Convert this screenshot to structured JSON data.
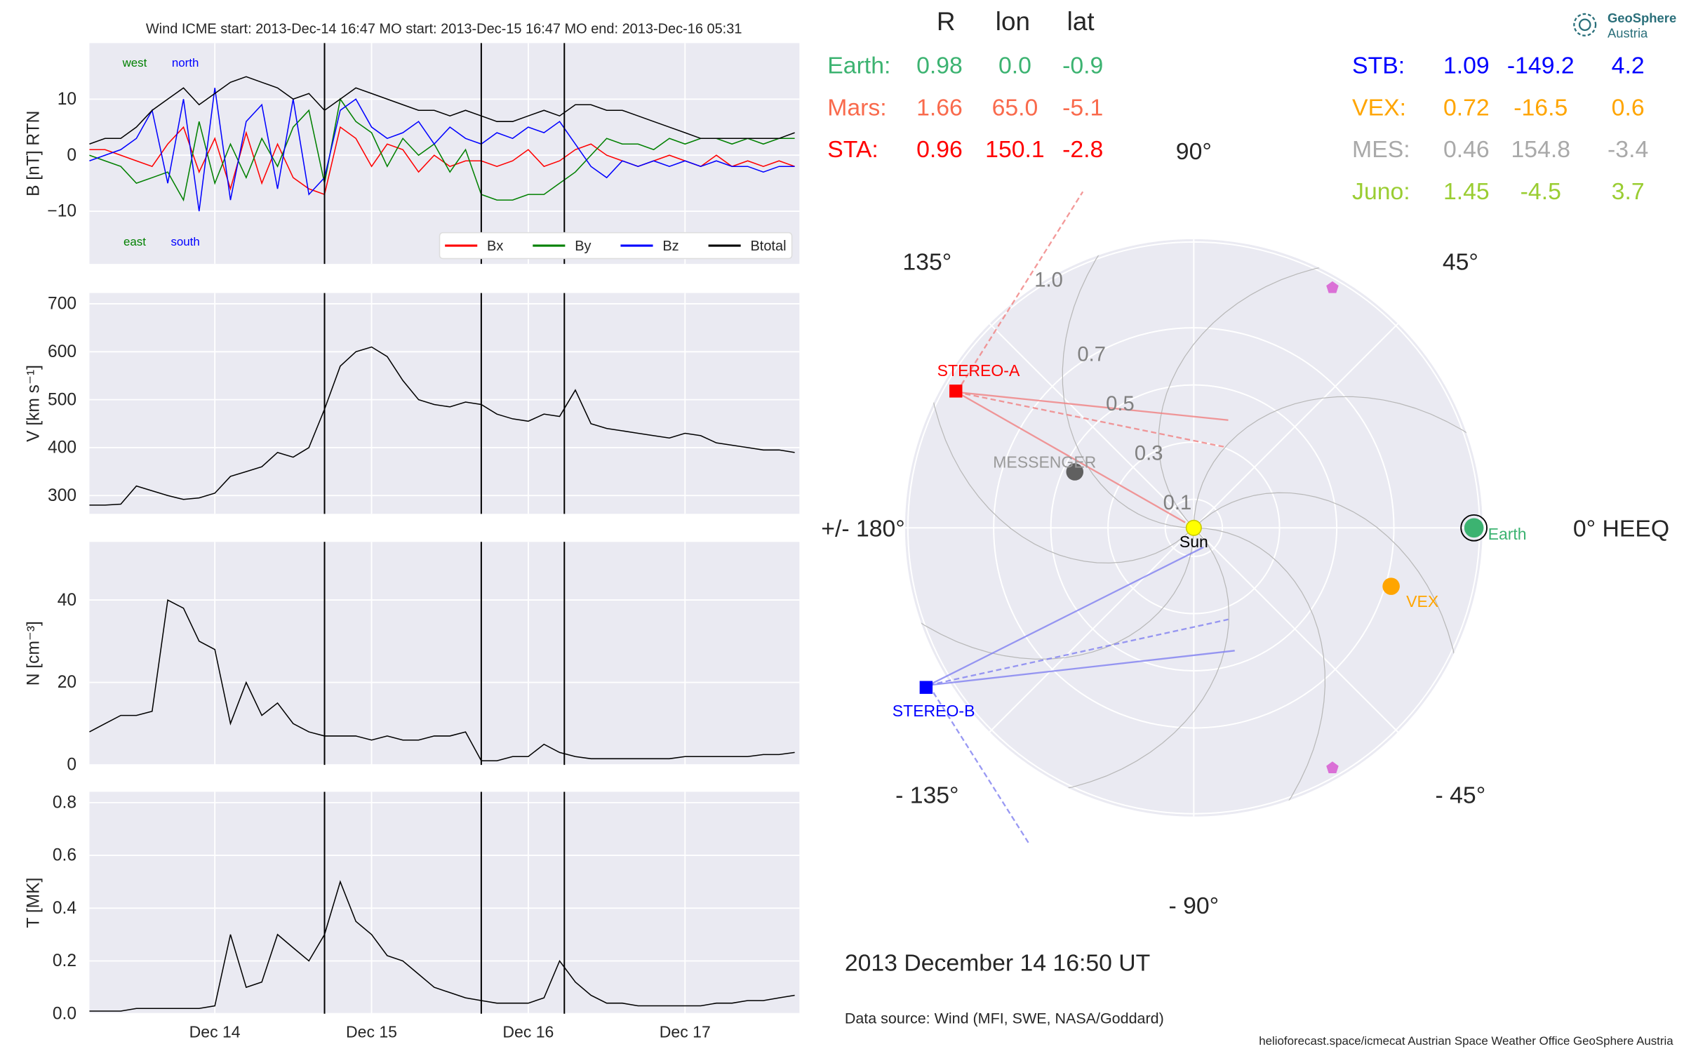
{
  "header": {
    "logo_title": "GeoSphere",
    "logo_subtitle": "Austria",
    "date": "2013 December 14  16:50 UT",
    "source": "Data source: Wind (MFI, SWE, NASA/Goddard)",
    "footer": "helioforecast.space/icmecat   Austrian Space Weather Office   GeoSphere Austria"
  },
  "table": {
    "columns": [
      "R",
      "lon",
      "lat"
    ],
    "rows": [
      {
        "name": "Earth:",
        "color": "#3cb371",
        "cells": [
          "0.98",
          "0.0",
          "-0.9"
        ]
      },
      {
        "name": "Mars:",
        "color": "#f96a4c",
        "cells": [
          "1.66",
          "65.0",
          "-5.1"
        ]
      },
      {
        "name": "STA:",
        "color": "#ff0000",
        "cells": [
          "0.96",
          "150.1",
          "-2.8"
        ]
      },
      {
        "name": "STB:",
        "color": "#0000ff",
        "cells": [
          "1.09",
          "-149.2",
          "4.2"
        ]
      },
      {
        "name": "VEX:",
        "color": "#ffa500",
        "cells": [
          "0.72",
          "-16.5",
          "0.6"
        ]
      },
      {
        "name": "MES:",
        "color": "#a9a9a9",
        "cells": [
          "0.46",
          "154.8",
          "-3.4"
        ]
      },
      {
        "name": "Juno:",
        "color": "#9acd32",
        "cells": [
          "1.45",
          "-4.5",
          "3.7"
        ]
      }
    ]
  },
  "chart_data": [
    {
      "type": "line",
      "title": "Wind    ICME start: 2013-Dec-14 16:47   MO start: 2013-Dec-15 16:47   MO end: 2013-Dec-16 05:31",
      "ylabel": "B [nT] RTN",
      "xlim": [
        13.2,
        17.73
      ],
      "ylim": [
        -19.4,
        20
      ],
      "yticks": [
        {
          "value": -10,
          "label": "−10"
        },
        0,
        10
      ],
      "grid": true,
      "legend": "lower right",
      "vlines": [
        14.7,
        15.7,
        16.23
      ],
      "annotations": [
        {
          "text": "west",
          "color": "#008000"
        },
        {
          "text": "north",
          "color": "#0000ff"
        },
        {
          "text": "east",
          "color": "#008000"
        },
        {
          "text": "south",
          "color": "#0000ff"
        }
      ],
      "x": [
        13.2,
        13.3,
        13.4,
        13.5,
        13.6,
        13.7,
        13.8,
        13.9,
        14.0,
        14.1,
        14.2,
        14.3,
        14.4,
        14.5,
        14.6,
        14.7,
        14.8,
        14.9,
        15.0,
        15.1,
        15.2,
        15.3,
        15.4,
        15.5,
        15.6,
        15.7,
        15.8,
        15.9,
        16.0,
        16.1,
        16.2,
        16.3,
        16.4,
        16.5,
        16.6,
        16.7,
        16.8,
        16.9,
        17.0,
        17.1,
        17.2,
        17.3,
        17.4,
        17.5,
        17.6,
        17.7
      ],
      "series": [
        {
          "name": "Bx",
          "color": "#ff0000",
          "values": [
            1,
            1,
            0,
            -1,
            -2,
            2,
            5,
            -3,
            3,
            -6,
            4,
            -5,
            2,
            -4,
            -6,
            -7,
            5,
            3,
            -2,
            2,
            1,
            -3,
            0,
            -2,
            -1,
            -1,
            -2,
            -1,
            1,
            -2,
            -1,
            1,
            2,
            0,
            -1,
            -2,
            -1,
            0,
            -1,
            -2,
            0,
            -2,
            -1,
            -2,
            -1,
            -2
          ]
        },
        {
          "name": "By",
          "color": "#008000",
          "values": [
            0,
            -1,
            -2,
            -5,
            -4,
            -3,
            -8,
            6,
            -5,
            2,
            -4,
            3,
            -2,
            5,
            8,
            -5,
            10,
            6,
            4,
            -2,
            3,
            0,
            2,
            -3,
            1,
            -7,
            -8,
            -8,
            -7,
            -7,
            -5,
            -3,
            0,
            3,
            2,
            2,
            1,
            3,
            2,
            3,
            3,
            2,
            3,
            2,
            3,
            3
          ]
        },
        {
          "name": "Bz",
          "color": "#0000ff",
          "values": [
            -1,
            0,
            1,
            3,
            8,
            -5,
            10,
            -10,
            12,
            -8,
            6,
            9,
            -6,
            10,
            -7,
            -4,
            8,
            10,
            5,
            3,
            4,
            6,
            2,
            5,
            3,
            2,
            4,
            3,
            5,
            4,
            6,
            2,
            -2,
            -4,
            -1,
            -2,
            -1,
            -2,
            -1,
            -2,
            -1,
            -2,
            -2,
            -3,
            -2,
            -2
          ]
        },
        {
          "name": "Btotal",
          "color": "#000000",
          "values": [
            2,
            3,
            3,
            5,
            8,
            10,
            12,
            9,
            11,
            13,
            14,
            13,
            12,
            10,
            11,
            8,
            10,
            12,
            11,
            10,
            9,
            8,
            8,
            7,
            8,
            7,
            6,
            6,
            7,
            8,
            7,
            9,
            9,
            8,
            8,
            7,
            6,
            5,
            4,
            3,
            3,
            3,
            3,
            3,
            3,
            4
          ]
        }
      ]
    },
    {
      "type": "line",
      "ylabel": "V [km s⁻¹]",
      "xlim": [
        13.2,
        17.73
      ],
      "ylim": [
        261.8,
        722.5
      ],
      "yticks": [
        300,
        400,
        500,
        600,
        700
      ],
      "grid": true,
      "color": "#000000",
      "x": [
        13.2,
        13.3,
        13.4,
        13.5,
        13.6,
        13.7,
        13.8,
        13.9,
        14.0,
        14.1,
        14.2,
        14.3,
        14.4,
        14.5,
        14.6,
        14.7,
        14.8,
        14.9,
        15.0,
        15.1,
        15.2,
        15.3,
        15.4,
        15.5,
        15.6,
        15.7,
        15.8,
        15.9,
        16.0,
        16.1,
        16.2,
        16.3,
        16.4,
        16.5,
        16.6,
        16.7,
        16.8,
        16.9,
        17.0,
        17.1,
        17.2,
        17.3,
        17.4,
        17.5,
        17.6,
        17.7
      ],
      "values": [
        280,
        280,
        282,
        320,
        310,
        300,
        292,
        295,
        305,
        340,
        350,
        360,
        390,
        380,
        400,
        480,
        570,
        600,
        610,
        590,
        540,
        500,
        490,
        485,
        495,
        490,
        470,
        460,
        455,
        470,
        465,
        520,
        450,
        440,
        435,
        430,
        425,
        420,
        430,
        425,
        410,
        405,
        400,
        395,
        395,
        390
      ]
    },
    {
      "type": "line",
      "ylabel": "N [cm⁻³]",
      "xlim": [
        13.2,
        17.73
      ],
      "ylim": [
        0,
        54.1
      ],
      "yticks": [
        0,
        20,
        40
      ],
      "grid": true,
      "color": "#000000",
      "x": [
        13.2,
        13.3,
        13.4,
        13.5,
        13.6,
        13.7,
        13.8,
        13.9,
        14.0,
        14.1,
        14.2,
        14.3,
        14.4,
        14.5,
        14.6,
        14.7,
        14.8,
        14.9,
        15.0,
        15.1,
        15.2,
        15.3,
        15.4,
        15.5,
        15.6,
        15.7,
        15.8,
        15.9,
        16.0,
        16.1,
        16.2,
        16.3,
        16.4,
        16.5,
        16.6,
        16.7,
        16.8,
        16.9,
        17.0,
        17.1,
        17.2,
        17.3,
        17.4,
        17.5,
        17.6,
        17.7
      ],
      "values": [
        8,
        10,
        12,
        12,
        13,
        40,
        38,
        30,
        28,
        10,
        20,
        12,
        15,
        10,
        8,
        7,
        7,
        7,
        6,
        7,
        6,
        6,
        7,
        7,
        8,
        1,
        1,
        2,
        2,
        5,
        3,
        2,
        1.5,
        1.5,
        1.5,
        1.5,
        1.5,
        1.5,
        2,
        2,
        2,
        2,
        2,
        2.5,
        2.5,
        3
      ]
    },
    {
      "type": "line",
      "ylabel": "T [MK]",
      "xlim": [
        13.2,
        17.73
      ],
      "ylim": [
        0,
        0.841
      ],
      "yticks": [
        {
          "value": 0,
          "label": "0.0"
        },
        0.2,
        0.4,
        0.6,
        0.8
      ],
      "grid": true,
      "color": "#000000",
      "xticks": [
        {
          "value": 14,
          "label": "Dec 14"
        },
        {
          "value": 15,
          "label": "Dec 15"
        },
        {
          "value": 16,
          "label": "Dec 16"
        },
        {
          "value": 17,
          "label": "Dec 17"
        }
      ],
      "x": [
        13.2,
        13.3,
        13.4,
        13.5,
        13.6,
        13.7,
        13.8,
        13.9,
        14.0,
        14.1,
        14.2,
        14.3,
        14.4,
        14.5,
        14.6,
        14.7,
        14.8,
        14.9,
        15.0,
        15.1,
        15.2,
        15.3,
        15.4,
        15.5,
        15.6,
        15.7,
        15.8,
        15.9,
        16.0,
        16.1,
        16.2,
        16.3,
        16.4,
        16.5,
        16.6,
        16.7,
        16.8,
        16.9,
        17.0,
        17.1,
        17.2,
        17.3,
        17.4,
        17.5,
        17.6,
        17.7
      ],
      "values": [
        0.01,
        0.01,
        0.01,
        0.02,
        0.02,
        0.02,
        0.02,
        0.02,
        0.03,
        0.3,
        0.1,
        0.12,
        0.3,
        0.25,
        0.2,
        0.3,
        0.5,
        0.35,
        0.3,
        0.22,
        0.2,
        0.15,
        0.1,
        0.08,
        0.06,
        0.05,
        0.04,
        0.04,
        0.04,
        0.06,
        0.2,
        0.12,
        0.07,
        0.04,
        0.04,
        0.03,
        0.03,
        0.03,
        0.03,
        0.03,
        0.04,
        0.04,
        0.05,
        0.05,
        0.06,
        0.07
      ]
    },
    {
      "type": "polar",
      "rlim": [
        0,
        1.01
      ],
      "rticks": [
        0.1,
        0.3,
        0.5,
        0.7,
        {
          "value": 1,
          "label": "1.0"
        }
      ],
      "angle_ticks": [
        {
          "value": 0,
          "label": "0° HEEQ"
        },
        {
          "value": 45,
          "label": "45°"
        },
        {
          "value": 90,
          "label": "90°"
        },
        {
          "value": 135,
          "label": "135°"
        },
        {
          "value": 180,
          "label": "+/- 180°"
        },
        {
          "value": -135,
          "label": "- 135°"
        },
        {
          "value": -90,
          "label": "- 90°"
        },
        {
          "value": -45,
          "label": "- 45°"
        }
      ],
      "points": [
        {
          "name": "Sun",
          "r": 0,
          "lon": 0,
          "color": "#ffff00",
          "label_color": "#000000",
          "marker": "circle"
        },
        {
          "name": "Earth",
          "r": 0.98,
          "lon": 0.0,
          "color": "#3cb371",
          "label_color": "#3cb371",
          "marker": "circle"
        },
        {
          "name": "VEX",
          "r": 0.72,
          "lon": -16.5,
          "color": "#ffa500",
          "label_color": "#ffa500",
          "marker": "circle"
        },
        {
          "name": "STEREO-A",
          "r": 0.96,
          "lon": 150.1,
          "color": "#ff0000",
          "label_color": "#ff0000",
          "marker": "square"
        },
        {
          "name": "STEREO-B",
          "r": 1.09,
          "lon": -149.2,
          "color": "#0000ff",
          "label_color": "#0000ff",
          "marker": "square"
        },
        {
          "name": "MESSENGER",
          "r": 0.46,
          "lon": 154.8,
          "color": "#606060",
          "label_color": "#999999",
          "marker": "circle"
        },
        {
          "r": 0.97,
          "lon": 60,
          "color": "#da70d6",
          "marker": "pentagon"
        },
        {
          "r": 0.97,
          "lon": -60,
          "color": "#da70d6",
          "marker": "pentagon"
        }
      ]
    }
  ]
}
